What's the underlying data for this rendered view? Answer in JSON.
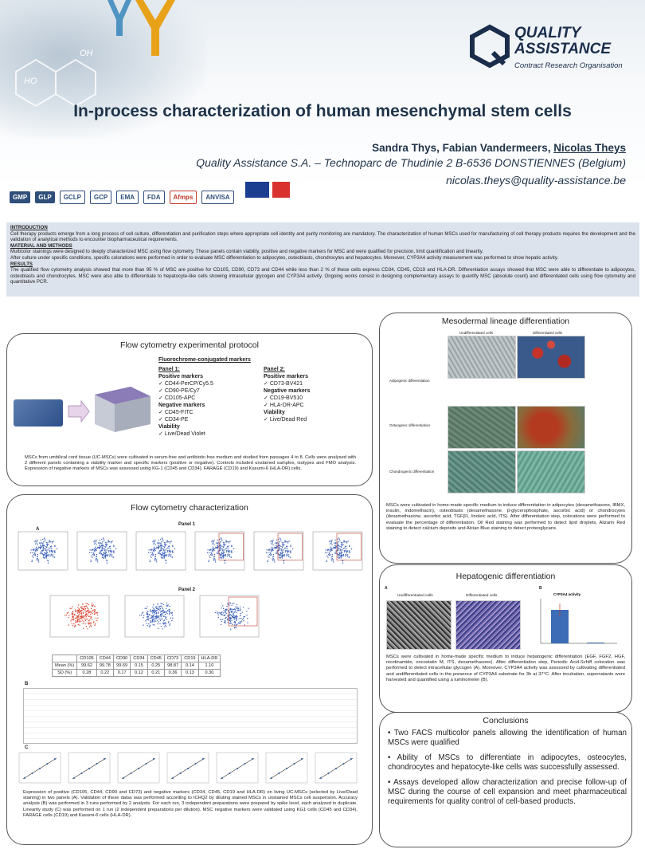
{
  "header": {
    "title": "In-process characterization of human mesenchymal stem cells",
    "authors_plain": "Sandra Thys, Fabian Vandermeers, ",
    "authors_underlined": "Nicolas Theys",
    "affiliation": "Quality Assistance S.A. – Technoparc de Thudinie 2 B-6536  DONSTIENNES (Belgium)",
    "email": "nicolas.theys@quality-assistance.be",
    "logo_line1": "QUALITY",
    "logo_line2": "ASSISTANCE",
    "logo_sub": "Contract Research Organisation",
    "cert_logos": [
      "GMP",
      "GLP",
      "GCLP",
      "GCP",
      "EMA",
      "FDA",
      "Afmps",
      "ANVISA"
    ]
  },
  "intro": {
    "h1": "INTRODUCTION",
    "p1": "Cell therapy products emerge from a long process of cell culture, differentiation and purification steps where appropriate cell identity and purity monitoring are mandatory. The characterization of human MSCs used for manufacturing of cell therapy products requires the development and the validation of analytical methods to encounter biopharmaceutical requirements.",
    "h2": "MATERIAL AND METHODS",
    "p2": "Multicolor stainings were designed to deeply characterized MSC using flow cytometry. These panels contain viability, positive and negative markers for MSC and were qualified for precision, limit quantification and linearity.",
    "p3": "After culture under specific conditions, specific colorations were performed in order to evaluate MSC differentiation to adipocytes, osteoblasts, chondrocytes and hepatocytes. Moreover, CYP3A4 activity measurement was performed to show hepatic activity.",
    "h3": "RESULTS",
    "p4": "The qualified flow cytometry analysis showed that more than 95 % of MSC are positive for CD105, CD90, CD73 and CD44 while less than 2 % of these cells express CD34, CD45, CD19 and HLA-DR.  Differentiation assays showed that MSC were able to differentiate to adipocytes, osteoblasts and chondrocytes. MSC were also able to differentiate to hepatocyte-like cells showing intracellular glycogen and CYP3A4 activity. Ongoing works consist in designing complementary assays to quantify MSC (absolute count) and differentiated cells using flow cytometry and quantitative PCR."
  },
  "protocol": {
    "title": "Flow cytometry experimental protocol",
    "subtitle": "Fluorochrome-conjugated markers",
    "panel1": {
      "title": "Panel 1:",
      "pos_label": "Positive markers",
      "pos": [
        "CD44-PerCP/Cy5.5",
        "CD90-PE/Cy7",
        "CD105-APC"
      ],
      "neg_label": "Negative markers",
      "neg": [
        "CD45-FITC",
        "CD34-PE"
      ],
      "via_label": "Viability",
      "via": [
        "Live/Dead Violet"
      ]
    },
    "panel2": {
      "title": "Panel 2:",
      "pos_label": "Positive markers",
      "pos": [
        "CD73-BV421"
      ],
      "neg_label": "Negative markers",
      "neg": [
        "CD19-BV510",
        "HLA-DR-APC"
      ],
      "via_label": "Viability",
      "via": [
        "Live/Dead Red"
      ]
    },
    "caption": "MSCs from umbilical cord tissue (UC-MSCs) were cultivated in serum-free and antibiotic-free medium and studied from passages 4 to 8. Cells were analysed with 2 different panels containing a viability marker and specific markers (positive or negative). Controls included unstained samples, isotypes and FMO analysis. Expression of negative markers of MSCs was assessed using KG-1 (CD45 and CD34), FARAGE (CD19) and Kasumi-6 (HLA-DR) cells."
  },
  "fc_char": {
    "title": "Flow cytometry characterization",
    "label_a": "A",
    "label_b": "B",
    "label_c": "C",
    "panel1_label": "Panel 1",
    "panel2_label": "Panel 2",
    "table": {
      "headers": [
        "",
        "CD105",
        "CD44",
        "CD90",
        "CD34",
        "CD45",
        "CD73",
        "CD19",
        "HLA-DR"
      ],
      "rows": [
        [
          "Mean (%)",
          "99.62",
          "99.78",
          "99.69",
          "0.15",
          "0.25",
          "98.87",
          "0.14",
          "1.10"
        ],
        [
          "SD (%)",
          "0.28",
          "0.22",
          "0.17",
          "0.12",
          "0.21",
          "0.36",
          "0.13",
          "0.30"
        ]
      ]
    },
    "caption": "Expression of positive (CD105, CD44, CD90 and CD73) and negative markers (CD34, CD45, CD19 and HLA-DR) on living UC-MSCs (selected by Live/Dead staining) in two panels (A). Validation of these datas was performed according to ICHQ2 by diluting stained MSCs in unstained MSCs cell suspension. Accuracy analysis (B) was performed in 3 runs performed by 2 analysts. For each run, 3 independent preparations were prepared by spike level, each analyzed in duplicate. Linearity study (C) was performed on 1 run (2 independent preparations per dilution). MSC negative markers were validated using KG1 cells (CD45 and CD34), FARAGE cells (CD19) and Kasumi-6 cells (HLA-DR)."
  },
  "meso": {
    "title": "Mesodermal lineage differentiation",
    "col1": "Undifferentiated cells",
    "col2": "Differentiated cells",
    "rows": [
      "Adipogenic differentiation",
      "Osteogenic differentiation",
      "Chondrogenic differentiation"
    ],
    "caption": "MSCs were cultivated in home-made specific medium to induce differentiation in adipocytes (dexamethasone, IBMX, insulin, indomethacin), osteoblasts (dexamethasone, β-glycerophosphate, ascorbic acid) or chondrocytes (dexamethasone, ascorbic acid, TGFβ1, linoleic acid, ITS). After differentiation step, colorations were performed to evaluate the percentage of differentiation. Oil Red staining was performed to detect lipid droplets, Alizarin Red staining to detect calcium deposits and Alcian Blue staining to detect proteoglycans."
  },
  "hep": {
    "title": "Hepatogenic differentiation",
    "label_a": "A",
    "label_b": "B",
    "col1": "Undifferentiated cells",
    "col2": "Differentiated cells",
    "chart_title": "CYP3A4 activity",
    "caption": "MSCs were cultivated in home-made specific medium to induce hepatogenic differentiation (EGF, FGF2, HGF, nicotinamide, oncostatin M, ITS, dexamethasone). After differentiation step, Periodic Acid-Schiff coloration was performed to detect intracellular glycogen (A). Moreover, CYP3A4 activity was assessed by cultivating differentiated and undifferentiated cells in the presence of CYP3A4 substrate for 3h at 37°C. After incubation, supernatants were harvested and quantified using a luminometer (B)."
  },
  "concl": {
    "title": "Conclusions",
    "items": [
      "Two FACS multicolor panels allowing the identification of human MSCs were qualified",
      "Ability of MSCs to differentiate in adipocytes, osteocytes, chondrocytes and hepatocyte-like cells was successfully assessed.",
      "Assays developed allow characterization and precise follow-up of MSC during the course of cell expansion and meet pharmaceutical requirements for quality control of cell-based products."
    ]
  },
  "colors": {
    "navy": "#1f3349",
    "intro_bg": "#dde3ec",
    "dot_blue": "#3b5fb8",
    "dot_red": "#d8432e"
  }
}
